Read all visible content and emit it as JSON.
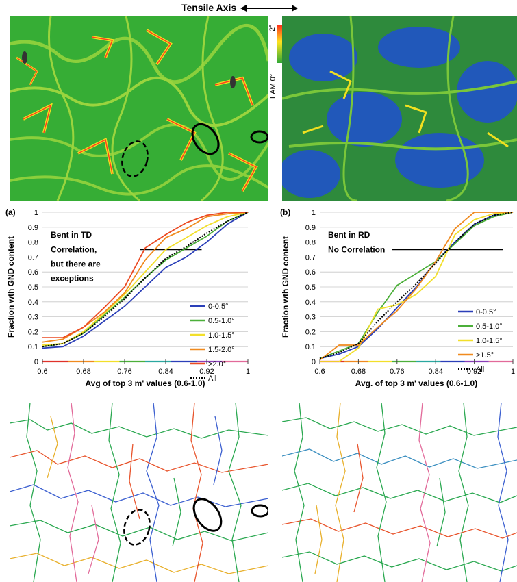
{
  "header": {
    "tensile_axis": "Tensile Axis"
  },
  "colorbar": {
    "label": "LAM 0°",
    "max_label": "2°"
  },
  "colors": {
    "lam_low": "#1f4fd0",
    "lam_mid": "#2ea836",
    "lam_high": "#ff3b1a",
    "series_0_05": "#2b3fb8",
    "series_05_10": "#4caf3a",
    "series_10_15": "#f2df2a",
    "series_15_20": "#f08a1e",
    "series_gt20": "#ec4a22",
    "series_all": "#000000"
  },
  "chart_data": [
    {
      "type": "line",
      "panel_label": "(a)",
      "inset_title": "Bent in TD",
      "annotation": [
        "Correlation,",
        "but there are",
        "exceptions"
      ],
      "xlabel": "Avg of top 3 m' values (0.6-1.0)",
      "ylabel": "Fraction wth GND content",
      "xlim": [
        0.6,
        1.0
      ],
      "ylim": [
        0,
        1
      ],
      "xticks": [
        "0.6",
        "0.68",
        "0.76",
        "0.84",
        "0.92",
        "1"
      ],
      "yticks": [
        "0",
        "0.1",
        "0.2",
        "0.3",
        "0.4",
        "0.5",
        "0.6",
        "0.7",
        "0.8",
        "0.9",
        "1"
      ],
      "hline": {
        "y": 0.75,
        "x": [
          0.79,
          0.91
        ]
      },
      "legend_position": "bottom-right",
      "series": [
        {
          "name": "0-0.5°",
          "color": "#2b3fb8",
          "style": "solid",
          "x": [
            0.6,
            0.64,
            0.68,
            0.72,
            0.76,
            0.8,
            0.84,
            0.88,
            0.92,
            0.96,
            1.0
          ],
          "y": [
            0.09,
            0.1,
            0.17,
            0.27,
            0.37,
            0.5,
            0.63,
            0.7,
            0.8,
            0.92,
            1.0
          ]
        },
        {
          "name": "0.5-1.0°",
          "color": "#4caf3a",
          "style": "solid",
          "x": [
            0.6,
            0.64,
            0.68,
            0.72,
            0.76,
            0.8,
            0.84,
            0.88,
            0.92,
            0.96,
            1.0
          ],
          "y": [
            0.1,
            0.12,
            0.19,
            0.31,
            0.43,
            0.56,
            0.68,
            0.76,
            0.84,
            0.94,
            1.0
          ]
        },
        {
          "name": "1.0-1.5°",
          "color": "#f2df2a",
          "style": "solid",
          "x": [
            0.6,
            0.64,
            0.68,
            0.72,
            0.76,
            0.8,
            0.84,
            0.88,
            0.92,
            0.96,
            1.0
          ],
          "y": [
            0.11,
            0.12,
            0.2,
            0.32,
            0.45,
            0.6,
            0.75,
            0.83,
            0.91,
            0.97,
            1.0
          ]
        },
        {
          "name": "1.5-2.0°",
          "color": "#f08a1e",
          "style": "solid",
          "x": [
            0.6,
            0.64,
            0.68,
            0.72,
            0.76,
            0.8,
            0.84,
            0.88,
            0.92,
            0.96,
            1.0
          ],
          "y": [
            0.13,
            0.15,
            0.23,
            0.33,
            0.46,
            0.68,
            0.83,
            0.89,
            0.97,
            0.99,
            1.0
          ]
        },
        {
          "name": ">2.0°",
          "color": "#ec4a22",
          "style": "solid",
          "x": [
            0.6,
            0.64,
            0.68,
            0.72,
            0.76,
            0.8,
            0.84,
            0.88,
            0.92,
            0.96,
            1.0
          ],
          "y": [
            0.16,
            0.16,
            0.23,
            0.36,
            0.5,
            0.76,
            0.85,
            0.93,
            0.98,
            1.0,
            1.0
          ]
        },
        {
          "name": "All",
          "color": "#000000",
          "style": "dotted",
          "x": [
            0.6,
            0.64,
            0.68,
            0.72,
            0.76,
            0.8,
            0.84,
            0.88,
            0.92,
            0.96,
            1.0
          ],
          "y": [
            0.1,
            0.12,
            0.19,
            0.3,
            0.42,
            0.56,
            0.69,
            0.77,
            0.86,
            0.94,
            1.0
          ]
        }
      ]
    },
    {
      "type": "line",
      "panel_label": "(b)",
      "inset_title": "Bent in RD",
      "annotation": [
        "No Correlation"
      ],
      "xlabel": "Avg. of top 3 m' values (0.6-1.0)",
      "ylabel": "Fraction wth GND content",
      "xlim": [
        0.6,
        1.0
      ],
      "ylim": [
        0,
        1
      ],
      "xticks": [
        "0.6",
        "0.68",
        "0.76",
        "0.84",
        "0.92",
        "1"
      ],
      "yticks": [
        "0",
        "0.1",
        "0.2",
        "0.3",
        "0.4",
        "0.5",
        "0.6",
        "0.7",
        "0.8",
        "0.9",
        "1"
      ],
      "hline": {
        "y": 0.75,
        "x": [
          0.75,
          0.98
        ]
      },
      "legend_position": "bottom-right",
      "series": [
        {
          "name": "0-0.5°",
          "color": "#2b3fb8",
          "style": "solid",
          "x": [
            0.6,
            0.64,
            0.68,
            0.72,
            0.76,
            0.8,
            0.84,
            0.88,
            0.92,
            0.96,
            1.0
          ],
          "y": [
            0.02,
            0.05,
            0.1,
            0.22,
            0.36,
            0.5,
            0.67,
            0.8,
            0.92,
            0.98,
            1.0
          ]
        },
        {
          "name": "0.5-1.0°",
          "color": "#4caf3a",
          "style": "solid",
          "x": [
            0.6,
            0.64,
            0.68,
            0.72,
            0.76,
            0.8,
            0.84,
            0.88,
            0.92,
            0.96,
            1.0
          ],
          "y": [
            0.02,
            0.07,
            0.12,
            0.33,
            0.51,
            0.59,
            0.67,
            0.79,
            0.91,
            0.97,
            1.0
          ]
        },
        {
          "name": "1.0-1.5°",
          "color": "#f2df2a",
          "style": "solid",
          "x": [
            0.6,
            0.64,
            0.68,
            0.72,
            0.76,
            0.8,
            0.84,
            0.88,
            0.92,
            0.96,
            1.0
          ],
          "y": [
            0.0,
            0.0,
            0.09,
            0.35,
            0.38,
            0.45,
            0.57,
            0.85,
            0.95,
            0.99,
            1.0
          ]
        },
        {
          "name": ">1.5°",
          "color": "#f08a1e",
          "style": "solid",
          "x": [
            0.6,
            0.64,
            0.68,
            0.72,
            0.76,
            0.8,
            0.84,
            0.88,
            0.92,
            0.96,
            1.0
          ],
          "y": [
            0.01,
            0.11,
            0.11,
            0.23,
            0.34,
            0.49,
            0.67,
            0.89,
            1.0,
            1.0,
            1.0
          ]
        },
        {
          "name": "All",
          "color": "#000000",
          "style": "dotted",
          "x": [
            0.6,
            0.64,
            0.68,
            0.72,
            0.76,
            0.8,
            0.84,
            0.88,
            0.92,
            0.96,
            1.0
          ],
          "y": [
            0.02,
            0.06,
            0.12,
            0.27,
            0.4,
            0.52,
            0.66,
            0.8,
            0.92,
            0.98,
            1.0
          ]
        }
      ]
    }
  ]
}
